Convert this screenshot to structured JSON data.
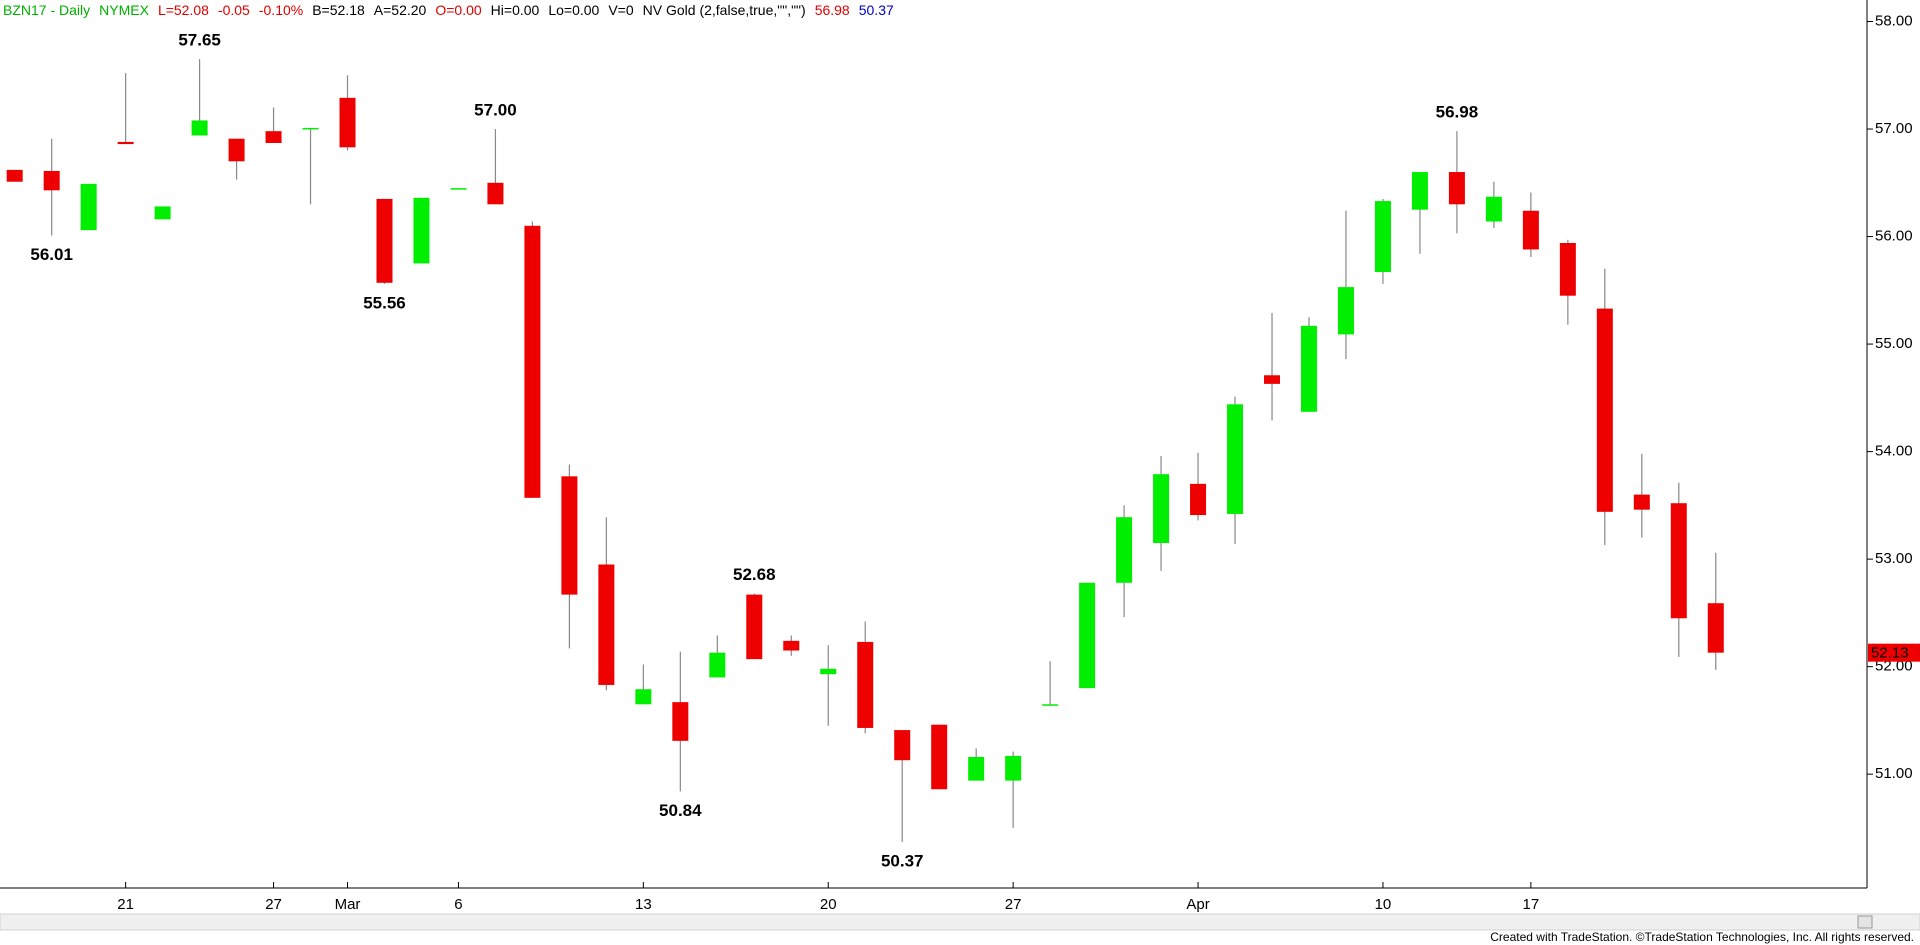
{
  "chart_data": {
    "type": "candlestick",
    "header": [
      {
        "text": "BZN17 - Daily",
        "color": "#00b000"
      },
      {
        "text": "NYMEX",
        "color": "#00b000"
      },
      {
        "text": "L=52.08",
        "color": "#e00000"
      },
      {
        "text": "-0.05",
        "color": "#e00000"
      },
      {
        "text": "-0.10%",
        "color": "#e00000"
      },
      {
        "text": "B=52.18",
        "color": "#000000"
      },
      {
        "text": "A=52.20",
        "color": "#000000"
      },
      {
        "text": "O=0.00",
        "color": "#e00000"
      },
      {
        "text": "Hi=0.00",
        "color": "#000000"
      },
      {
        "text": "Lo=0.00",
        "color": "#000000"
      },
      {
        "text": "V=0",
        "color": "#000000"
      },
      {
        "text": "NV Gold (2,false,true,\"\",\"\")",
        "color": "#000000"
      },
      {
        "text": "56.98",
        "color": "#e00000"
      },
      {
        "text": "50.37",
        "color": "#0000c0"
      }
    ],
    "categories": [
      null,
      null,
      null,
      "21",
      null,
      null,
      null,
      "27",
      null,
      "Mar",
      null,
      null,
      "6",
      null,
      null,
      null,
      null,
      "13",
      null,
      null,
      null,
      null,
      "20",
      null,
      null,
      null,
      null,
      "27",
      null,
      null,
      null,
      null,
      "Apr",
      null,
      null,
      null,
      null,
      "10",
      null,
      null,
      null,
      "17",
      null,
      null,
      null,
      null,
      null
    ],
    "open": [
      56.62,
      56.61,
      56.06,
      56.88,
      56.16,
      56.94,
      56.91,
      56.98,
      57.0,
      57.29,
      56.35,
      55.75,
      56.44,
      56.5,
      56.1,
      53.77,
      52.95,
      51.65,
      51.67,
      51.9,
      52.67,
      52.24,
      51.93,
      52.23,
      51.41,
      51.46,
      50.94,
      50.94,
      51.64,
      51.8,
      52.78,
      53.15,
      53.7,
      53.42,
      54.71,
      54.37,
      55.09,
      55.67,
      56.25,
      56.6,
      56.14,
      56.24,
      55.94,
      55.33,
      53.6,
      53.52,
      52.59
    ],
    "high": [
      56.62,
      56.91,
      56.49,
      57.52,
      56.28,
      57.65,
      56.91,
      57.2,
      57.01,
      57.5,
      56.35,
      56.36,
      56.45,
      57.0,
      56.14,
      53.88,
      53.39,
      52.02,
      52.14,
      52.29,
      52.68,
      52.29,
      52.2,
      52.42,
      51.41,
      51.46,
      51.24,
      51.21,
      52.05,
      52.78,
      53.5,
      53.96,
      53.99,
      54.51,
      55.29,
      55.25,
      56.24,
      56.35,
      56.6,
      56.98,
      56.51,
      56.41,
      55.97,
      55.7,
      53.98,
      53.71,
      53.06
    ],
    "low": [
      56.51,
      56.01,
      56.06,
      56.86,
      56.16,
      56.94,
      56.53,
      56.87,
      56.3,
      56.8,
      55.56,
      55.75,
      56.44,
      56.3,
      53.57,
      52.17,
      51.78,
      51.65,
      50.84,
      51.9,
      52.07,
      52.1,
      51.45,
      51.38,
      50.37,
      50.86,
      50.94,
      50.5,
      51.64,
      51.8,
      52.46,
      52.89,
      53.36,
      53.14,
      54.29,
      54.37,
      54.86,
      55.56,
      55.84,
      56.03,
      56.08,
      55.81,
      55.18,
      53.13,
      53.2,
      52.09,
      51.97
    ],
    "close": [
      56.51,
      56.43,
      56.49,
      56.86,
      56.28,
      57.08,
      56.7,
      56.87,
      57.01,
      56.83,
      55.57,
      56.36,
      56.45,
      56.3,
      53.57,
      52.67,
      51.83,
      51.79,
      51.31,
      52.13,
      52.07,
      52.15,
      51.98,
      51.43,
      51.13,
      50.86,
      51.16,
      51.17,
      51.65,
      52.78,
      53.39,
      53.79,
      53.41,
      54.44,
      54.63,
      55.17,
      55.53,
      56.33,
      56.6,
      56.3,
      56.37,
      55.88,
      55.45,
      53.44,
      53.46,
      52.45,
      52.13
    ],
    "high_value_labels": [
      null,
      null,
      null,
      null,
      null,
      "57.65",
      null,
      null,
      null,
      null,
      null,
      null,
      null,
      "57.00",
      null,
      null,
      null,
      null,
      null,
      null,
      "52.68",
      null,
      null,
      null,
      null,
      null,
      null,
      null,
      null,
      null,
      null,
      null,
      null,
      null,
      null,
      null,
      null,
      null,
      null,
      "56.98",
      null,
      null,
      null,
      null,
      null,
      null,
      null
    ],
    "low_value_labels": [
      null,
      "56.01",
      null,
      null,
      null,
      null,
      null,
      null,
      null,
      null,
      "55.56",
      null,
      null,
      null,
      null,
      null,
      null,
      null,
      "50.84",
      null,
      null,
      null,
      null,
      null,
      "50.37",
      null,
      null,
      null,
      null,
      null,
      null,
      null,
      null,
      null,
      null,
      null,
      null,
      null,
      null,
      null,
      null,
      null,
      null,
      null,
      null,
      null,
      null
    ],
    "up_color": "#00ee00",
    "down_color": "#ee0000",
    "ylim": [
      49.96,
      58.2
    ],
    "yticks": [
      {
        "value": 51,
        "label": "51.00"
      },
      {
        "value": 52,
        "label": "52.00"
      },
      {
        "value": 53,
        "label": "53.00"
      },
      {
        "value": 54,
        "label": "54.00"
      },
      {
        "value": 55,
        "label": "55.00"
      },
      {
        "value": 56,
        "label": "56.00"
      },
      {
        "value": 57,
        "label": "57.00"
      },
      {
        "value": 58,
        "label": "58.00"
      }
    ],
    "grid": false,
    "footer": "Created with TradeStation. ©TradeStation Technologies, Inc. All rights reserved."
  }
}
